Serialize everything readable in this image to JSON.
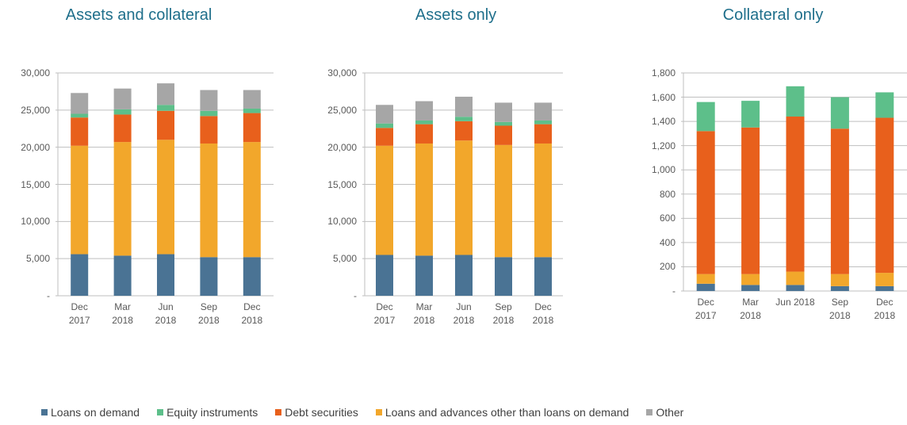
{
  "charts_title_note": null,
  "legend": [
    {
      "name": "Loans on demand",
      "color": "#4a7394"
    },
    {
      "name": "Equity instruments",
      "color": "#5dbf8a"
    },
    {
      "name": "Debt securities",
      "color": "#e8601c"
    },
    {
      "name": "Loans and advances other than loans on demand",
      "color": "#f2a72b"
    },
    {
      "name": "Other",
      "color": "#a6a6a6"
    }
  ],
  "chart_data": [
    {
      "type": "bar",
      "stacked": true,
      "title": "Assets and collateral",
      "categories": [
        "Dec 2017",
        "Mar 2018",
        "Jun 2018",
        "Sep 2018",
        "Dec 2018"
      ],
      "ylim": [
        0,
        30000
      ],
      "yticks": [
        {
          "value": 0,
          "label": "-"
        },
        {
          "value": 5000,
          "label": "5,000"
        },
        {
          "value": 10000,
          "label": "10,000"
        },
        {
          "value": 15000,
          "label": "15,000"
        },
        {
          "value": 20000,
          "label": "20,000"
        },
        {
          "value": 25000,
          "label": "25,000"
        },
        {
          "value": 30000,
          "label": "30,000"
        }
      ],
      "grid": true,
      "series": [
        {
          "color": "#4a7394",
          "values": [
            5600,
            5400,
            5600,
            5200,
            5200
          ]
        },
        {
          "color": "#f2a72b",
          "values": [
            14600,
            15300,
            15400,
            15300,
            15500
          ]
        },
        {
          "color": "#e8601c",
          "values": [
            3800,
            3700,
            3900,
            3700,
            3900
          ]
        },
        {
          "color": "#5dbf8a",
          "values": [
            500,
            700,
            800,
            700,
            600
          ]
        },
        {
          "color": "#a6a6a6",
          "values": [
            2800,
            2800,
            2900,
            2800,
            2500
          ]
        }
      ]
    },
    {
      "type": "bar",
      "stacked": true,
      "title": "Assets only",
      "categories": [
        "Dec 2017",
        "Mar 2018",
        "Jun 2018",
        "Sep 2018",
        "Dec 2018"
      ],
      "ylim": [
        0,
        30000
      ],
      "yticks": [
        {
          "value": 0,
          "label": "-"
        },
        {
          "value": 5000,
          "label": "5,000"
        },
        {
          "value": 10000,
          "label": "10,000"
        },
        {
          "value": 15000,
          "label": "15,000"
        },
        {
          "value": 20000,
          "label": "20,000"
        },
        {
          "value": 25000,
          "label": "25,000"
        },
        {
          "value": 30000,
          "label": "30,000"
        }
      ],
      "grid": true,
      "series": [
        {
          "color": "#4a7394",
          "values": [
            5500,
            5400,
            5500,
            5200,
            5200
          ]
        },
        {
          "color": "#f2a72b",
          "values": [
            14700,
            15100,
            15400,
            15100,
            15300
          ]
        },
        {
          "color": "#e8601c",
          "values": [
            2400,
            2600,
            2600,
            2600,
            2600
          ]
        },
        {
          "color": "#5dbf8a",
          "values": [
            600,
            500,
            600,
            500,
            500
          ]
        },
        {
          "color": "#a6a6a6",
          "values": [
            2500,
            2600,
            2700,
            2600,
            2400
          ]
        }
      ]
    },
    {
      "type": "bar",
      "stacked": true,
      "title": "Collateral only",
      "categories": [
        "Dec 2017",
        "Mar 2018",
        "Jun 2018",
        "Sep 2018",
        "Dec 2018"
      ],
      "ylim": [
        0,
        1800
      ],
      "yticks": [
        {
          "value": 0,
          "label": "-"
        },
        200,
        400,
        600,
        800,
        {
          "value": 1000,
          "label": "1,000"
        },
        {
          "value": 1200,
          "label": "1,200"
        },
        {
          "value": 1400,
          "label": "1,400"
        },
        {
          "value": 1600,
          "label": "1,600"
        },
        {
          "value": 1800,
          "label": "1,800"
        }
      ],
      "grid": true,
      "series": [
        {
          "color": "#4a7394",
          "values": [
            60,
            50,
            50,
            40,
            40
          ]
        },
        {
          "color": "#f2a72b",
          "values": [
            80,
            90,
            110,
            100,
            110
          ]
        },
        {
          "color": "#e8601c",
          "values": [
            1180,
            1210,
            1280,
            1200,
            1280
          ]
        },
        {
          "color": "#5dbf8a",
          "values": [
            240,
            220,
            250,
            260,
            210
          ]
        }
      ]
    }
  ]
}
